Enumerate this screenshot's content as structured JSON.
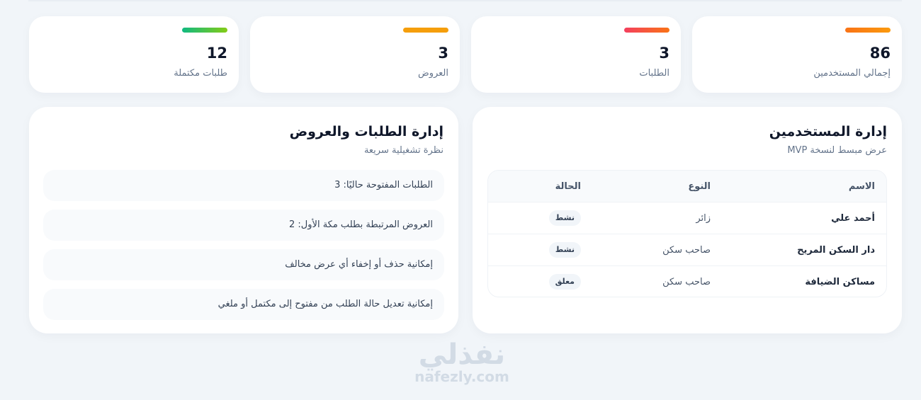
{
  "stats": [
    {
      "value": "86",
      "label": "إجمالي المستخدمين",
      "gradient": [
        "#f97316",
        "#fb923c"
      ]
    },
    {
      "value": "3",
      "label": "الطلبات",
      "gradient": [
        "#f43f5e",
        "#f97316"
      ]
    },
    {
      "value": "3",
      "label": "العروض",
      "gradient": [
        "#f59e0b",
        "#f59e0b"
      ]
    },
    {
      "value": "12",
      "label": "طلبات مكتملة",
      "gradient": [
        "#84cc16",
        "#10b981"
      ]
    }
  ],
  "users_panel": {
    "title": "إدارة المستخدمين",
    "subtitle": "عرض مبسط لنسخة MVP",
    "columns": [
      "الاسم",
      "النوع",
      "الحالة"
    ],
    "rows": [
      {
        "name": "أحمد علي",
        "type": "زائر",
        "status": "نشط"
      },
      {
        "name": "دار السكن المريح",
        "type": "صاحب سكن",
        "status": "نشط"
      },
      {
        "name": "مساكن الضيافة",
        "type": "صاحب سكن",
        "status": "معلق"
      }
    ]
  },
  "requests_panel": {
    "title": "إدارة الطلبات والعروض",
    "subtitle": "نظرة تشغيلية سريعة",
    "items": [
      "الطلبات المفتوحة حاليًا: 3",
      "العروض المرتبطة بطلب مكة الأول: 2",
      "إمكانية حذف أو إخفاء أي عرض مخالف",
      "إمكانية تعديل حالة الطلب من مفتوح إلى مكتمل أو ملغي"
    ]
  },
  "watermark": {
    "arabic": "نفذلي",
    "latin": "nafezly.com"
  }
}
